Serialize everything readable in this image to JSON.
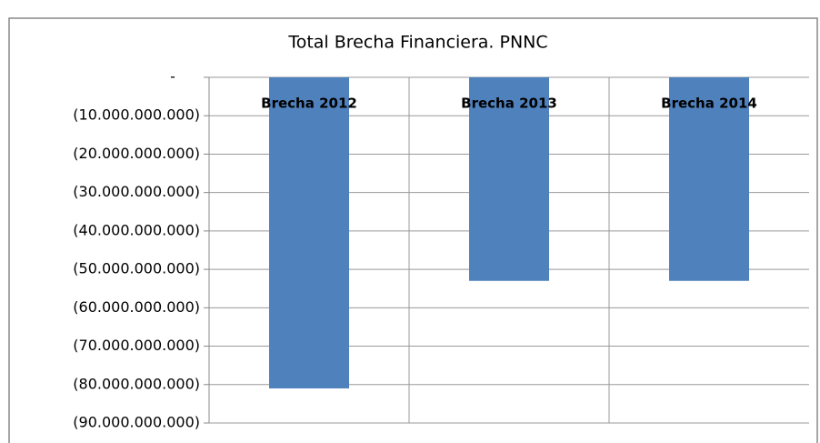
{
  "chart_data": {
    "type": "bar",
    "title": "Total Brecha Financiera. PNNC",
    "categories": [
      "Brecha 2012",
      "Brecha 2013",
      "Brecha 2014"
    ],
    "values": [
      -81000000000,
      -53000000000,
      -53000000000
    ],
    "color": "#4f81bd",
    "ylim": [
      -90000000000,
      0
    ],
    "yticks": [
      {
        "value": 0,
        "label": "-"
      },
      {
        "value": -10000000000,
        "label": "(10.000.000.000)"
      },
      {
        "value": -20000000000,
        "label": "(20.000.000.000)"
      },
      {
        "value": -30000000000,
        "label": "(30.000.000.000)"
      },
      {
        "value": -40000000000,
        "label": "(40.000.000.000)"
      },
      {
        "value": -50000000000,
        "label": "(50.000.000.000)"
      },
      {
        "value": -60000000000,
        "label": "(60.000.000.000)"
      },
      {
        "value": -70000000000,
        "label": "(70.000.000.000)"
      },
      {
        "value": -80000000000,
        "label": "(80.000.000.000)"
      },
      {
        "value": -90000000000,
        "label": "(90.000.000.000)"
      }
    ],
    "grid": true
  }
}
